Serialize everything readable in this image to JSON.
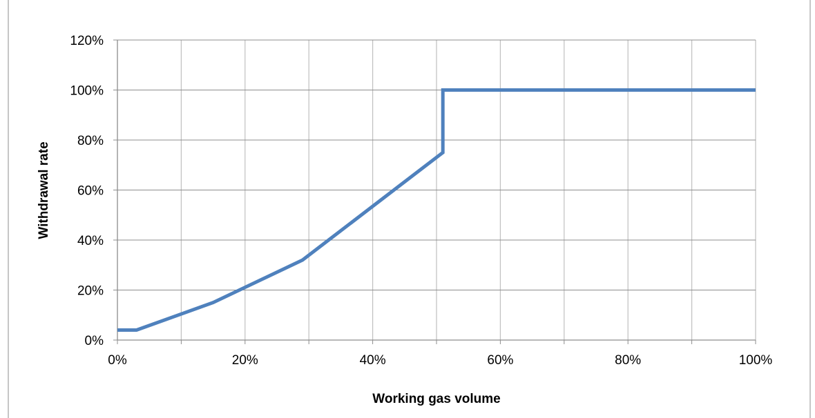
{
  "chart_data": {
    "type": "line",
    "title": "",
    "xlabel": "Working gas volume",
    "ylabel": "Withdrawal rate",
    "xlim": [
      0,
      100
    ],
    "ylim": [
      0,
      120
    ],
    "x_ticks": [
      "0%",
      "20%",
      "40%",
      "60%",
      "80%",
      "100%"
    ],
    "y_ticks": [
      "0%",
      "20%",
      "40%",
      "60%",
      "80%",
      "100%",
      "120%"
    ],
    "x_tick_values": [
      0,
      20,
      40,
      60,
      80,
      100
    ],
    "y_tick_values": [
      0,
      20,
      40,
      60,
      80,
      100,
      120
    ],
    "x_gridlines": [
      0,
      10,
      20,
      30,
      40,
      50,
      60,
      70,
      80,
      90,
      100
    ],
    "y_gridlines": [
      0,
      20,
      40,
      60,
      80,
      100,
      120
    ],
    "grid": true,
    "legend": "none",
    "series": [
      {
        "color": "#4F81BD",
        "x": [
          0,
          3,
          15,
          29,
          51,
          51,
          100
        ],
        "y": [
          4,
          4,
          15,
          32,
          75,
          100,
          100
        ]
      }
    ]
  }
}
